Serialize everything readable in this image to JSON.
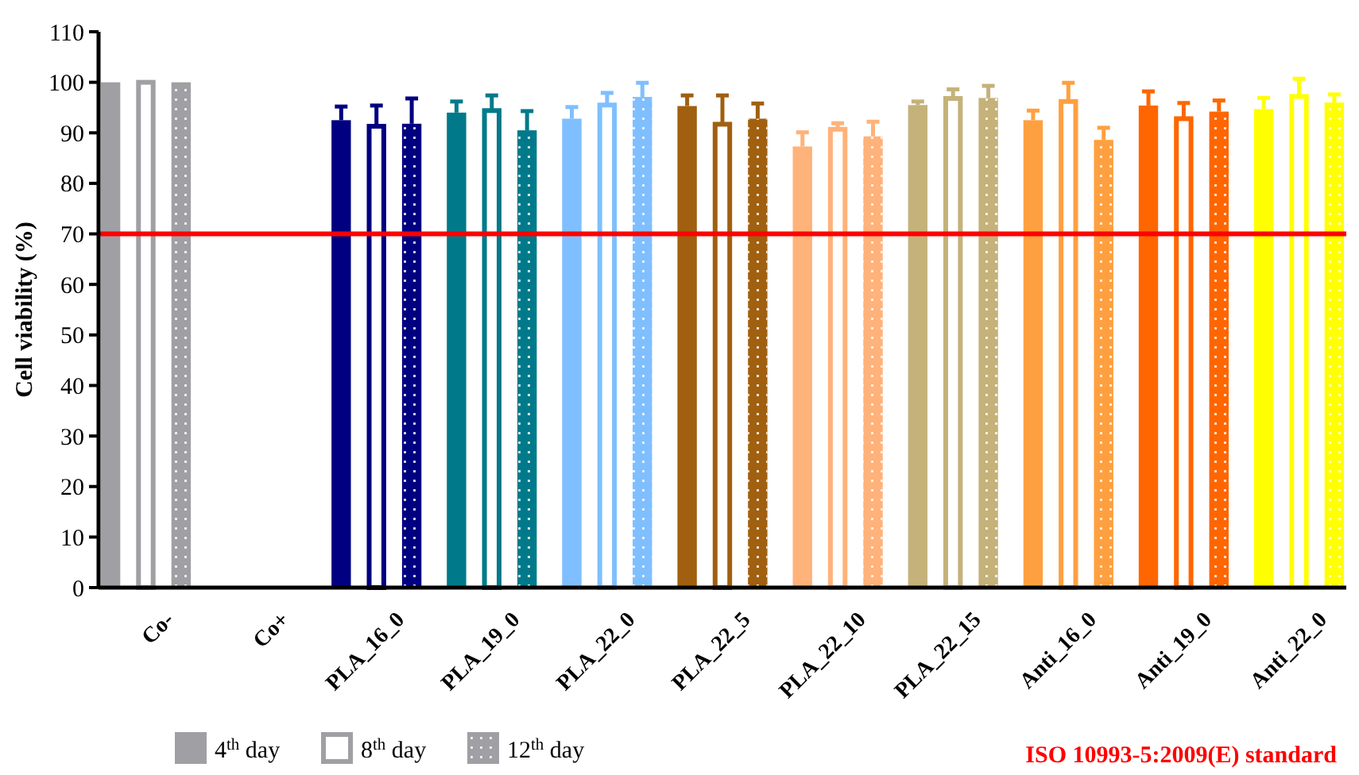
{
  "chart_data": {
    "type": "bar",
    "ylabel": "Cell viability (%)",
    "categories": [
      "Co-",
      "Co+",
      "PLA_16_0",
      "PLA_19_0",
      "PLA_22_0",
      "PLA_22_5",
      "PLA_22_10",
      "PLA_22_15",
      "Anti_16_0",
      "Anti_19_0",
      "Anti_22_0"
    ],
    "series": [
      {
        "name": "4$^{th}$ day",
        "color": "#a09fa4",
        "colors": [
          "#a09fa4",
          "#a09fa4",
          "#000080",
          "#007a8a",
          "#7fbfff",
          "#a0600f",
          "#ffb27a",
          "#c4b27a",
          "#ffa040",
          "#ff6600",
          "#ffff00"
        ],
        "values": [
          100,
          0,
          92.5,
          94.0,
          92.8,
          95.3,
          87.3,
          95.5,
          92.5,
          95.4,
          94.7
        ],
        "errors": [
          null,
          null,
          [
            92.5,
            95.2
          ],
          [
            94.0,
            96.2
          ],
          [
            92.8,
            95.1
          ],
          [
            95.3,
            97.4
          ],
          [
            87.3,
            90.1
          ],
          [
            95.5,
            96.2
          ],
          [
            92.5,
            94.4
          ],
          [
            95.4,
            98.2
          ],
          [
            94.7,
            96.9
          ]
        ]
      },
      {
        "name": "8$^{th}$ day",
        "color": "#a09fa4",
        "colors": [
          "#a09fa4",
          "#a09fa4",
          "#000080",
          "#007a8a",
          "#7fbfff",
          "#a0600f",
          "#ffb27a",
          "#c4b27a",
          "#ffa040",
          "#ff6600",
          "#ffff00"
        ],
        "values": [
          100,
          0,
          91.3,
          94.4,
          95.5,
          91.7,
          90.7,
          96.8,
          96.2,
          92.8,
          97.2
        ],
        "errors": [
          null,
          null,
          [
            91.3,
            95.4
          ],
          [
            94.4,
            97.4
          ],
          [
            95.5,
            97.9
          ],
          [
            91.7,
            97.4
          ],
          [
            90.7,
            91.9
          ],
          [
            96.8,
            98.6
          ],
          [
            96.2,
            99.9
          ],
          [
            92.8,
            95.9
          ],
          [
            97.2,
            100.7
          ]
        ]
      },
      {
        "name": "12$^{th}$ day",
        "color": "#a09fa4",
        "colors": [
          "#a09fa4",
          "#a09fa4",
          "#000080",
          "#007a8a",
          "#7fbfff",
          "#a0600f",
          "#ffb27a",
          "#c4b27a",
          "#ffa040",
          "#ff6600",
          "#ffff00"
        ],
        "values": [
          100,
          0,
          91.8,
          90.5,
          97.1,
          92.8,
          89.3,
          96.9,
          88.6,
          94.2,
          96.0
        ],
        "errors": [
          null,
          null,
          [
            91.8,
            96.8
          ],
          [
            90.5,
            94.3
          ],
          [
            97.1,
            99.9
          ],
          [
            92.8,
            95.8
          ],
          [
            89.3,
            92.2
          ],
          [
            96.9,
            99.3
          ],
          [
            88.6,
            91.0
          ],
          [
            94.2,
            96.4
          ],
          [
            96.0,
            97.6
          ]
        ]
      }
    ],
    "ylim": [
      0,
      110
    ],
    "yticks": [
      0,
      10,
      20,
      30,
      40,
      50,
      60,
      70,
      80,
      90,
      100,
      110
    ],
    "ref_lines": [
      {
        "axis": "y",
        "value": 70,
        "color": "#ff0000"
      }
    ],
    "annotations": [
      "ISO 10993-5:2009(E) standard"
    ],
    "legend": "bottom left"
  }
}
